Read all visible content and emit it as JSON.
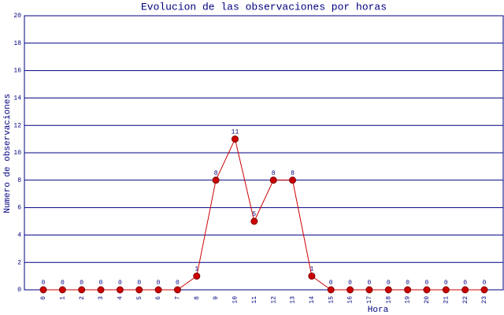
{
  "chart_data": {
    "type": "line",
    "title": "Evolucion de las observaciones por horas",
    "x_label": "Hora",
    "y_label": "Numero de observaciones",
    "categories": [
      "0",
      "1",
      "2",
      "3",
      "4",
      "5",
      "6",
      "7",
      "8",
      "9",
      "10",
      "11",
      "12",
      "13",
      "14",
      "15",
      "16",
      "17",
      "18",
      "19",
      "20",
      "21",
      "22",
      "23"
    ],
    "values": [
      0,
      0,
      0,
      0,
      0,
      0,
      0,
      0,
      1,
      8,
      11,
      5,
      8,
      8,
      1,
      0,
      0,
      0,
      0,
      0,
      0,
      0,
      0,
      0
    ],
    "color": "#cc0000",
    "ylim": [
      0,
      20
    ],
    "yticks": [
      0,
      2,
      4,
      6,
      8,
      10,
      12,
      14,
      16,
      18,
      20
    ],
    "grid": true
  }
}
